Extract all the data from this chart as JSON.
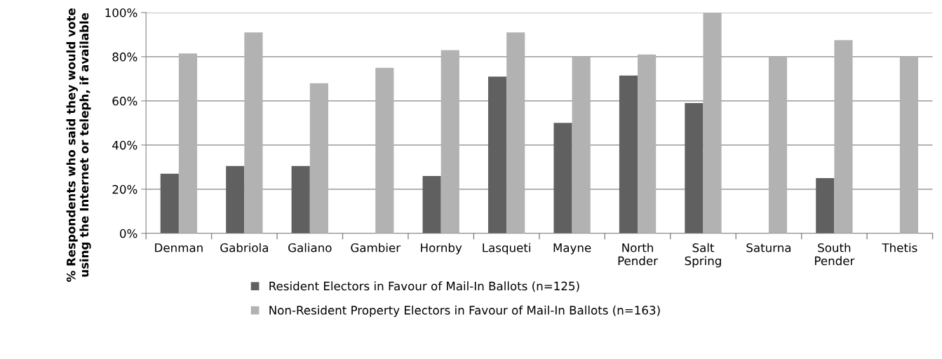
{
  "chart_data": {
    "type": "bar",
    "ylabel": "% Respondents who said they would vote using the Internet or teleph, if available",
    "categories": [
      "Denman",
      "Gabriola",
      "Galiano",
      "Gambier",
      "Hornby",
      "Lasqueti",
      "Mayne",
      "North\nPender",
      "Salt\nSpring",
      "Saturna",
      "South\nPender",
      "Thetis"
    ],
    "series": [
      {
        "name": "Resident Electors in Favour of Mail-In Ballots (n=125)",
        "color": "#606060",
        "values": [
          27,
          30.5,
          30.5,
          null,
          26,
          71,
          50,
          71.5,
          59,
          null,
          25,
          null
        ]
      },
      {
        "name": "Non-Resident Property Electors in Favour of Mail-In Ballots (n=163)",
        "color": "#b2b2b2",
        "values": [
          81.5,
          91,
          68,
          75,
          83,
          91,
          80,
          81,
          100,
          80,
          87.5,
          80
        ]
      }
    ],
    "ylim": [
      0,
      100
    ],
    "yticks": [
      {
        "value": 0,
        "label": "0%"
      },
      {
        "value": 20,
        "label": "20%"
      },
      {
        "value": 40,
        "label": "40%"
      },
      {
        "value": 60,
        "label": "60%"
      },
      {
        "value": 80,
        "label": "80%"
      },
      {
        "value": 100,
        "label": "100%"
      }
    ],
    "grid": "y",
    "legend": "bottom"
  }
}
